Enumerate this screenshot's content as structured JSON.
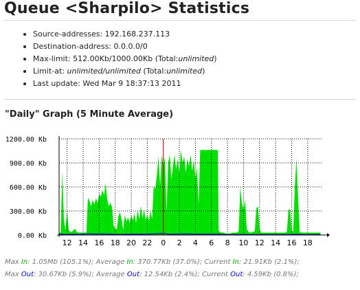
{
  "page": {
    "title": "Queue <Sharpilo> Statistics",
    "info": [
      {
        "label": "Source-addresses:",
        "value": "192.168.237.113"
      },
      {
        "label": "Destination-address:",
        "value": "0.0.0.0/0"
      },
      {
        "label": "Max-limit:",
        "value": "512.00Kb/1000.00Kb",
        "rest_pre": "(Total:",
        "rest_em": "unlimited",
        "rest_post": ")"
      },
      {
        "label": "Limit-at:",
        "value_em": "unlimited/unlimited",
        "rest_pre": "(Total:",
        "rest_em": "unlimited",
        "rest_post": ")"
      },
      {
        "label": "Last update:",
        "value": "Wed Mar 9 18:37:13 2011"
      }
    ],
    "graph_title": "\"Daily\" Graph (5 Minute Average)"
  },
  "chart_data": {
    "type": "area",
    "y_unit": "Kb",
    "ylim": [
      0,
      1200
    ],
    "y_ticks": [
      "1200.00 Kb",
      "900.00 Kb",
      "600.00 Kb",
      "300.00 Kb",
      "0.00 Kb"
    ],
    "x_ticks": [
      "12",
      "14",
      "16",
      "18",
      "20",
      "22",
      "0",
      "2",
      "4",
      "6",
      "8",
      "10",
      "12",
      "14",
      "16",
      "18"
    ],
    "current_marker_tick": "0",
    "grid": true,
    "colors": {
      "in": "#00e000",
      "out": "#1a2aa0",
      "marker": "#cc0000",
      "grid": "#000000"
    },
    "series": [
      {
        "name": "In",
        "points": [
          [
            11.0,
            30
          ],
          [
            11.2,
            30
          ],
          [
            11.4,
            790
          ],
          [
            11.6,
            200
          ],
          [
            11.8,
            60
          ],
          [
            12.0,
            300
          ],
          [
            12.2,
            60
          ],
          [
            12.4,
            40
          ],
          [
            12.6,
            40
          ],
          [
            12.8,
            60
          ],
          [
            13.0,
            80
          ],
          [
            13.2,
            40
          ],
          [
            13.4,
            30
          ],
          [
            13.6,
            30
          ],
          [
            13.8,
            30
          ],
          [
            14.0,
            30
          ],
          [
            14.2,
            30
          ],
          [
            14.4,
            30
          ],
          [
            14.6,
            470
          ],
          [
            14.8,
            420
          ],
          [
            15.0,
            360
          ],
          [
            15.2,
            440
          ],
          [
            15.4,
            380
          ],
          [
            15.6,
            460
          ],
          [
            15.8,
            400
          ],
          [
            16.0,
            510
          ],
          [
            16.2,
            480
          ],
          [
            16.4,
            560
          ],
          [
            16.6,
            500
          ],
          [
            16.8,
            640
          ],
          [
            17.0,
            450
          ],
          [
            17.2,
            360
          ],
          [
            17.4,
            400
          ],
          [
            17.6,
            350
          ],
          [
            17.8,
            120
          ],
          [
            18.0,
            80
          ],
          [
            18.2,
            70
          ],
          [
            18.4,
            240
          ],
          [
            18.6,
            280
          ],
          [
            18.8,
            200
          ],
          [
            19.0,
            60
          ],
          [
            19.2,
            250
          ],
          [
            19.4,
            170
          ],
          [
            19.6,
            220
          ],
          [
            19.8,
            150
          ],
          [
            20.0,
            250
          ],
          [
            20.2,
            180
          ],
          [
            20.4,
            270
          ],
          [
            20.6,
            150
          ],
          [
            20.8,
            310
          ],
          [
            21.0,
            200
          ],
          [
            21.2,
            360
          ],
          [
            21.4,
            210
          ],
          [
            21.6,
            320
          ],
          [
            21.8,
            190
          ],
          [
            22.0,
            250
          ],
          [
            22.2,
            180
          ],
          [
            22.4,
            300
          ],
          [
            22.6,
            200
          ],
          [
            22.8,
            600
          ],
          [
            23.0,
            580
          ],
          [
            23.2,
            750
          ],
          [
            23.4,
            980
          ],
          [
            23.6,
            620
          ],
          [
            23.8,
            1000
          ],
          [
            24.0,
            850
          ],
          [
            24.2,
            980
          ],
          [
            24.4,
            280
          ],
          [
            24.6,
            900
          ],
          [
            24.8,
            1000
          ],
          [
            25.0,
            700
          ],
          [
            25.2,
            850
          ],
          [
            25.4,
            1000
          ],
          [
            25.6,
            820
          ],
          [
            25.8,
            950
          ],
          [
            26.0,
            760
          ],
          [
            26.2,
            1060
          ],
          [
            26.4,
            900
          ],
          [
            26.6,
            980
          ],
          [
            26.8,
            780
          ],
          [
            27.0,
            950
          ],
          [
            27.2,
            860
          ],
          [
            27.4,
            1000
          ],
          [
            27.6,
            800
          ],
          [
            27.8,
            930
          ],
          [
            28.0,
            700
          ],
          [
            28.2,
            840
          ],
          [
            28.4,
            380
          ],
          [
            28.6,
            1060
          ],
          [
            29.0,
            1060
          ],
          [
            29.5,
            1060
          ],
          [
            30.0,
            1060
          ],
          [
            30.5,
            1060
          ],
          [
            30.8,
            1060
          ],
          [
            30.9,
            60
          ],
          [
            31.0,
            40
          ],
          [
            31.2,
            30
          ],
          [
            31.4,
            30
          ],
          [
            31.6,
            30
          ],
          [
            31.8,
            20
          ],
          [
            32.0,
            20
          ],
          [
            32.4,
            20
          ],
          [
            32.6,
            30
          ],
          [
            32.8,
            30
          ],
          [
            33.0,
            30
          ],
          [
            33.2,
            30
          ],
          [
            33.4,
            50
          ],
          [
            33.6,
            600
          ],
          [
            33.8,
            400
          ],
          [
            34.0,
            320
          ],
          [
            34.2,
            440
          ],
          [
            34.4,
            80
          ],
          [
            34.6,
            40
          ],
          [
            34.8,
            30
          ],
          [
            35.0,
            30
          ],
          [
            35.2,
            40
          ],
          [
            35.4,
            50
          ],
          [
            35.6,
            330
          ],
          [
            35.8,
            360
          ],
          [
            36.0,
            80
          ],
          [
            36.2,
            30
          ],
          [
            36.4,
            30
          ],
          [
            36.6,
            30
          ],
          [
            36.8,
            30
          ],
          [
            37.0,
            30
          ],
          [
            37.2,
            30
          ],
          [
            37.4,
            30
          ],
          [
            37.6,
            30
          ],
          [
            37.8,
            30
          ],
          [
            38.0,
            30
          ],
          [
            38.2,
            30
          ],
          [
            38.4,
            30
          ],
          [
            38.6,
            30
          ],
          [
            38.8,
            30
          ],
          [
            39.0,
            30
          ],
          [
            39.2,
            30
          ],
          [
            39.4,
            40
          ],
          [
            39.6,
            300
          ],
          [
            39.8,
            330
          ],
          [
            40.0,
            60
          ],
          [
            40.2,
            40
          ],
          [
            40.4,
            600
          ],
          [
            40.6,
            950
          ],
          [
            40.8,
            480
          ],
          [
            41.0,
            40
          ],
          [
            41.2,
            30
          ],
          [
            41.4,
            30
          ],
          [
            41.6,
            30
          ],
          [
            41.8,
            30
          ],
          [
            42.0,
            30
          ],
          [
            42.2,
            30
          ],
          [
            42.4,
            30
          ],
          [
            42.6,
            30
          ],
          [
            42.8,
            30
          ],
          [
            43.0,
            30
          ],
          [
            43.2,
            30
          ],
          [
            43.4,
            30
          ],
          [
            43.6,
            30
          ]
        ]
      },
      {
        "name": "Out",
        "points": [
          [
            11.0,
            10
          ],
          [
            11.4,
            12
          ],
          [
            11.8,
            8
          ],
          [
            12.6,
            10
          ],
          [
            13.6,
            8
          ],
          [
            14.6,
            15
          ],
          [
            15.6,
            12
          ],
          [
            16.6,
            14
          ],
          [
            17.6,
            10
          ],
          [
            18.6,
            8
          ],
          [
            19.6,
            10
          ],
          [
            20.6,
            12
          ],
          [
            21.6,
            10
          ],
          [
            22.6,
            14
          ],
          [
            23.6,
            18
          ],
          [
            24.2,
            20
          ],
          [
            24.6,
            10
          ],
          [
            25.6,
            12
          ],
          [
            26.6,
            14
          ],
          [
            27.6,
            12
          ],
          [
            28.6,
            12
          ],
          [
            29.6,
            12
          ],
          [
            30.6,
            12
          ],
          [
            31.0,
            10
          ],
          [
            31.6,
            6
          ],
          [
            32.4,
            6
          ],
          [
            33.6,
            8
          ],
          [
            34.6,
            6
          ],
          [
            35.6,
            8
          ],
          [
            36.6,
            6
          ],
          [
            37.6,
            6
          ],
          [
            38.6,
            6
          ],
          [
            39.6,
            8
          ],
          [
            40.6,
            10
          ],
          [
            41.6,
            6
          ],
          [
            42.6,
            6
          ],
          [
            43.6,
            8
          ]
        ]
      }
    ]
  },
  "legend": {
    "line1": [
      {
        "t": "Max ",
        "c": ""
      },
      {
        "t": "In",
        "c": "in"
      },
      {
        "t": ": 1.05Mb (105.1%); Average ",
        "c": ""
      },
      {
        "t": "In",
        "c": "in"
      },
      {
        "t": ": 370.77Kb (37.0%); Current ",
        "c": ""
      },
      {
        "t": "In",
        "c": "in"
      },
      {
        "t": ": 21.91Kb (2.1%);",
        "c": ""
      }
    ],
    "line2": [
      {
        "t": "Max ",
        "c": ""
      },
      {
        "t": "Out",
        "c": "out"
      },
      {
        "t": ": 30.67Kb (5.9%); Average ",
        "c": ""
      },
      {
        "t": "Out",
        "c": "out"
      },
      {
        "t": ": 12.54Kb (2.4%); Current ",
        "c": ""
      },
      {
        "t": "Out",
        "c": "out"
      },
      {
        "t": ": 4.59Kb (0.8%);",
        "c": ""
      }
    ]
  }
}
